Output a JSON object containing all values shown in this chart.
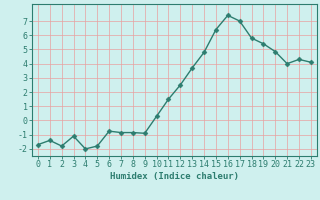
{
  "x": [
    0,
    1,
    2,
    3,
    4,
    5,
    6,
    7,
    8,
    9,
    10,
    11,
    12,
    13,
    14,
    15,
    16,
    17,
    18,
    19,
    20,
    21,
    22,
    23
  ],
  "y": [
    -1.7,
    -1.4,
    -1.8,
    -1.1,
    -2.0,
    -1.8,
    -0.75,
    -0.85,
    -0.85,
    -0.9,
    0.3,
    1.5,
    2.5,
    3.7,
    4.8,
    6.4,
    7.4,
    7.0,
    5.8,
    5.4,
    4.85,
    4.0,
    4.3,
    4.1
  ],
  "line_color": "#2d7d6f",
  "marker_color": "#2d7d6f",
  "bg_color": "#cff0ee",
  "grid_color": "#e8a0a0",
  "axis_color": "#2d7d6f",
  "xlabel": "Humidex (Indice chaleur)",
  "ylim": [
    -2.5,
    8.2
  ],
  "xlim": [
    -0.5,
    23.5
  ],
  "yticks": [
    -2,
    -1,
    0,
    1,
    2,
    3,
    4,
    5,
    6,
    7
  ],
  "xticks": [
    0,
    1,
    2,
    3,
    4,
    5,
    6,
    7,
    8,
    9,
    10,
    11,
    12,
    13,
    14,
    15,
    16,
    17,
    18,
    19,
    20,
    21,
    22,
    23
  ],
  "xlabel_fontsize": 6.5,
  "tick_fontsize": 6.0,
  "line_width": 1.0,
  "marker_size": 2.5
}
